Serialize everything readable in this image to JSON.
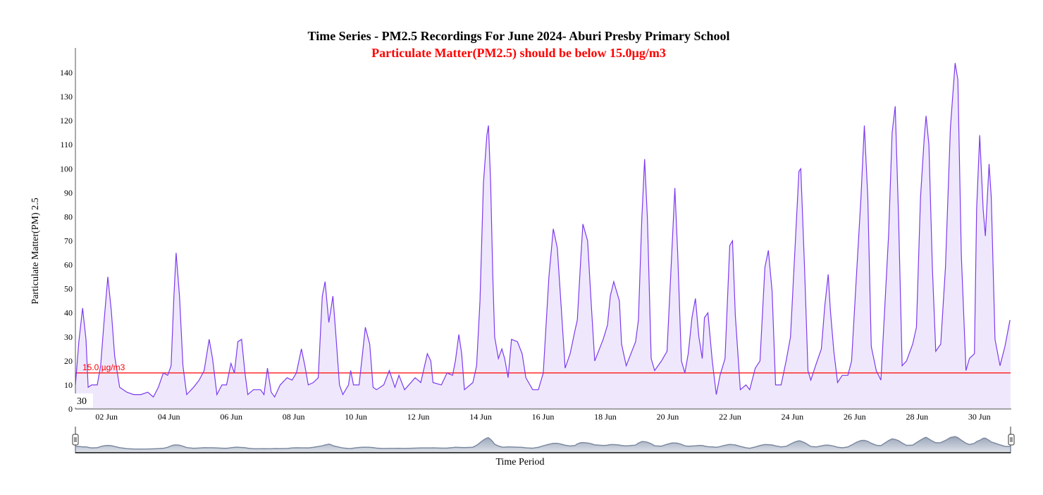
{
  "chart_data": {
    "type": "area",
    "title": "Time Series - PM2.5 Recordings For June 2024- Aburi Presby Primary School",
    "subtitle": "Particulate Matter(PM2.5) should be below 15.0µg/m3",
    "xlabel": "Time Period",
    "ylabel": "Particulate Matter(PM) 2.5",
    "x_unit": "day of June 2024 (fractional)",
    "xlim": [
      1,
      31
    ],
    "ylim": [
      0,
      145
    ],
    "yticks": [
      0,
      10,
      20,
      30,
      40,
      50,
      60,
      70,
      80,
      90,
      100,
      110,
      120,
      130,
      140
    ],
    "xticks": [
      {
        "value": 2,
        "label": "02 Jun"
      },
      {
        "value": 4,
        "label": "04 Jun"
      },
      {
        "value": 6,
        "label": "06 Jun"
      },
      {
        "value": 8,
        "label": "08 Jun"
      },
      {
        "value": 10,
        "label": "10 Jun"
      },
      {
        "value": 12,
        "label": "12 Jun"
      },
      {
        "value": 14,
        "label": "14 Jun"
      },
      {
        "value": 16,
        "label": "16 Jun"
      },
      {
        "value": 18,
        "label": "18 Jun"
      },
      {
        "value": 20,
        "label": "20 Jun"
      },
      {
        "value": 22,
        "label": "22 Jun"
      },
      {
        "value": 24,
        "label": "24 Jun"
      },
      {
        "value": 26,
        "label": "26 Jun"
      },
      {
        "value": 28,
        "label": "28 Jun"
      },
      {
        "value": 30,
        "label": "30 Jun"
      }
    ],
    "threshold": {
      "value": 15.0,
      "label": "15.0 µg/m3",
      "color": "#ff0000"
    },
    "corner_label": "30",
    "grid": false,
    "legend": "none",
    "colors": {
      "line": "#7c3aed",
      "fill": "#efe8fd",
      "navigator_line": "#7d8aa0",
      "navigator_fill": "#b4bccb"
    },
    "series": [
      {
        "name": "PM2.5",
        "points": [
          [
            1.0,
            10
          ],
          [
            1.11,
            28
          ],
          [
            1.23,
            42
          ],
          [
            1.34,
            29
          ],
          [
            1.41,
            9
          ],
          [
            1.52,
            10
          ],
          [
            1.7,
            10
          ],
          [
            1.81,
            18
          ],
          [
            1.93,
            38
          ],
          [
            2.04,
            55
          ],
          [
            2.15,
            41
          ],
          [
            2.26,
            22
          ],
          [
            2.42,
            9
          ],
          [
            2.65,
            7
          ],
          [
            2.87,
            6
          ],
          [
            3.1,
            6
          ],
          [
            3.32,
            7
          ],
          [
            3.5,
            5
          ],
          [
            3.66,
            9
          ],
          [
            3.82,
            15
          ],
          [
            3.96,
            14
          ],
          [
            4.07,
            18
          ],
          [
            4.16,
            47
          ],
          [
            4.23,
            65
          ],
          [
            4.34,
            47
          ],
          [
            4.45,
            18
          ],
          [
            4.57,
            6
          ],
          [
            4.79,
            9
          ],
          [
            4.97,
            12
          ],
          [
            5.13,
            16
          ],
          [
            5.29,
            29
          ],
          [
            5.4,
            21
          ],
          [
            5.54,
            6
          ],
          [
            5.7,
            10
          ],
          [
            5.85,
            10
          ],
          [
            5.99,
            19
          ],
          [
            6.1,
            15
          ],
          [
            6.21,
            28
          ],
          [
            6.33,
            29
          ],
          [
            6.44,
            15
          ],
          [
            6.53,
            6
          ],
          [
            6.71,
            8
          ],
          [
            6.94,
            8
          ],
          [
            7.05,
            6
          ],
          [
            7.16,
            17
          ],
          [
            7.28,
            7
          ],
          [
            7.39,
            5
          ],
          [
            7.57,
            10
          ],
          [
            7.79,
            13
          ],
          [
            7.95,
            12
          ],
          [
            8.09,
            15
          ],
          [
            8.25,
            25
          ],
          [
            8.36,
            18
          ],
          [
            8.47,
            10
          ],
          [
            8.63,
            11
          ],
          [
            8.79,
            13
          ],
          [
            8.92,
            47
          ],
          [
            9.01,
            53
          ],
          [
            9.13,
            36
          ],
          [
            9.19,
            41
          ],
          [
            9.26,
            47
          ],
          [
            9.35,
            32
          ],
          [
            9.47,
            10
          ],
          [
            9.58,
            6
          ],
          [
            9.76,
            10
          ],
          [
            9.83,
            16
          ],
          [
            9.92,
            10
          ],
          [
            10.1,
            10
          ],
          [
            10.21,
            23
          ],
          [
            10.3,
            34
          ],
          [
            10.44,
            27
          ],
          [
            10.55,
            9
          ],
          [
            10.66,
            8
          ],
          [
            10.89,
            10
          ],
          [
            11.07,
            16
          ],
          [
            11.25,
            9
          ],
          [
            11.38,
            14
          ],
          [
            11.56,
            8
          ],
          [
            11.9,
            13
          ],
          [
            12.08,
            11
          ],
          [
            12.29,
            23
          ],
          [
            12.4,
            20
          ],
          [
            12.47,
            11
          ],
          [
            12.74,
            10
          ],
          [
            12.92,
            15
          ],
          [
            13.1,
            14
          ],
          [
            13.19,
            20
          ],
          [
            13.3,
            31
          ],
          [
            13.39,
            23
          ],
          [
            13.48,
            8
          ],
          [
            13.75,
            11
          ],
          [
            13.87,
            18
          ],
          [
            13.98,
            45
          ],
          [
            14.09,
            94
          ],
          [
            14.2,
            114
          ],
          [
            14.25,
            118
          ],
          [
            14.32,
            94
          ],
          [
            14.39,
            55
          ],
          [
            14.45,
            30
          ],
          [
            14.57,
            21
          ],
          [
            14.68,
            25
          ],
          [
            14.77,
            21
          ],
          [
            14.88,
            13
          ],
          [
            14.99,
            29
          ],
          [
            15.18,
            28
          ],
          [
            15.33,
            23
          ],
          [
            15.45,
            13
          ],
          [
            15.67,
            8
          ],
          [
            15.85,
            8
          ],
          [
            16.01,
            15
          ],
          [
            16.19,
            55
          ],
          [
            16.33,
            75
          ],
          [
            16.46,
            67
          ],
          [
            16.58,
            43
          ],
          [
            16.71,
            17
          ],
          [
            16.87,
            23
          ],
          [
            17.03,
            33
          ],
          [
            17.1,
            37
          ],
          [
            17.21,
            62
          ],
          [
            17.28,
            77
          ],
          [
            17.43,
            70
          ],
          [
            17.55,
            43
          ],
          [
            17.66,
            20
          ],
          [
            17.93,
            29
          ],
          [
            18.07,
            35
          ],
          [
            18.16,
            47
          ],
          [
            18.27,
            53
          ],
          [
            18.45,
            45
          ],
          [
            18.52,
            27
          ],
          [
            18.67,
            18
          ],
          [
            18.97,
            28
          ],
          [
            19.06,
            37
          ],
          [
            19.17,
            79
          ],
          [
            19.26,
            104
          ],
          [
            19.35,
            79
          ],
          [
            19.47,
            21
          ],
          [
            19.58,
            16
          ],
          [
            19.8,
            20
          ],
          [
            19.98,
            24
          ],
          [
            20.14,
            67
          ],
          [
            20.23,
            92
          ],
          [
            20.32,
            65
          ],
          [
            20.44,
            20
          ],
          [
            20.55,
            15
          ],
          [
            20.66,
            23
          ],
          [
            20.78,
            38
          ],
          [
            20.89,
            46
          ],
          [
            21.0,
            30
          ],
          [
            21.11,
            21
          ],
          [
            21.18,
            38
          ],
          [
            21.29,
            40
          ],
          [
            21.43,
            20
          ],
          [
            21.56,
            6
          ],
          [
            21.68,
            14
          ],
          [
            21.84,
            21
          ],
          [
            21.99,
            68
          ],
          [
            22.08,
            70
          ],
          [
            22.17,
            39
          ],
          [
            22.33,
            8
          ],
          [
            22.51,
            10
          ],
          [
            22.63,
            8
          ],
          [
            22.81,
            17
          ],
          [
            22.96,
            20
          ],
          [
            23.12,
            59
          ],
          [
            23.23,
            66
          ],
          [
            23.35,
            49
          ],
          [
            23.46,
            10
          ],
          [
            23.64,
            10
          ],
          [
            23.8,
            20
          ],
          [
            23.94,
            30
          ],
          [
            24.09,
            68
          ],
          [
            24.21,
            99
          ],
          [
            24.27,
            100
          ],
          [
            24.39,
            59
          ],
          [
            24.5,
            16
          ],
          [
            24.59,
            12
          ],
          [
            24.77,
            19
          ],
          [
            24.93,
            25
          ],
          [
            25.04,
            43
          ],
          [
            25.15,
            56
          ],
          [
            25.22,
            41
          ],
          [
            25.33,
            24
          ],
          [
            25.45,
            11
          ],
          [
            25.6,
            14
          ],
          [
            25.78,
            14
          ],
          [
            25.9,
            20
          ],
          [
            26.05,
            54
          ],
          [
            26.2,
            88
          ],
          [
            26.31,
            118
          ],
          [
            26.42,
            88
          ],
          [
            26.53,
            26
          ],
          [
            26.69,
            16
          ],
          [
            26.84,
            12
          ],
          [
            26.95,
            39
          ],
          [
            27.09,
            73
          ],
          [
            27.2,
            115
          ],
          [
            27.3,
            126
          ],
          [
            27.41,
            78
          ],
          [
            27.52,
            18
          ],
          [
            27.66,
            20
          ],
          [
            27.86,
            27
          ],
          [
            27.98,
            34
          ],
          [
            28.11,
            88
          ],
          [
            28.23,
            113
          ],
          [
            28.29,
            122
          ],
          [
            28.38,
            110
          ],
          [
            28.49,
            59
          ],
          [
            28.6,
            24
          ],
          [
            28.76,
            27
          ],
          [
            28.91,
            59
          ],
          [
            29.07,
            117
          ],
          [
            29.22,
            144
          ],
          [
            29.31,
            137
          ],
          [
            29.42,
            64
          ],
          [
            29.57,
            16
          ],
          [
            29.68,
            21
          ],
          [
            29.84,
            23
          ],
          [
            29.91,
            83
          ],
          [
            30.01,
            114
          ],
          [
            30.12,
            83
          ],
          [
            30.19,
            72
          ],
          [
            30.31,
            102
          ],
          [
            30.38,
            88
          ],
          [
            30.5,
            29
          ],
          [
            30.66,
            18
          ],
          [
            30.82,
            26
          ],
          [
            30.98,
            37
          ]
        ]
      }
    ]
  }
}
